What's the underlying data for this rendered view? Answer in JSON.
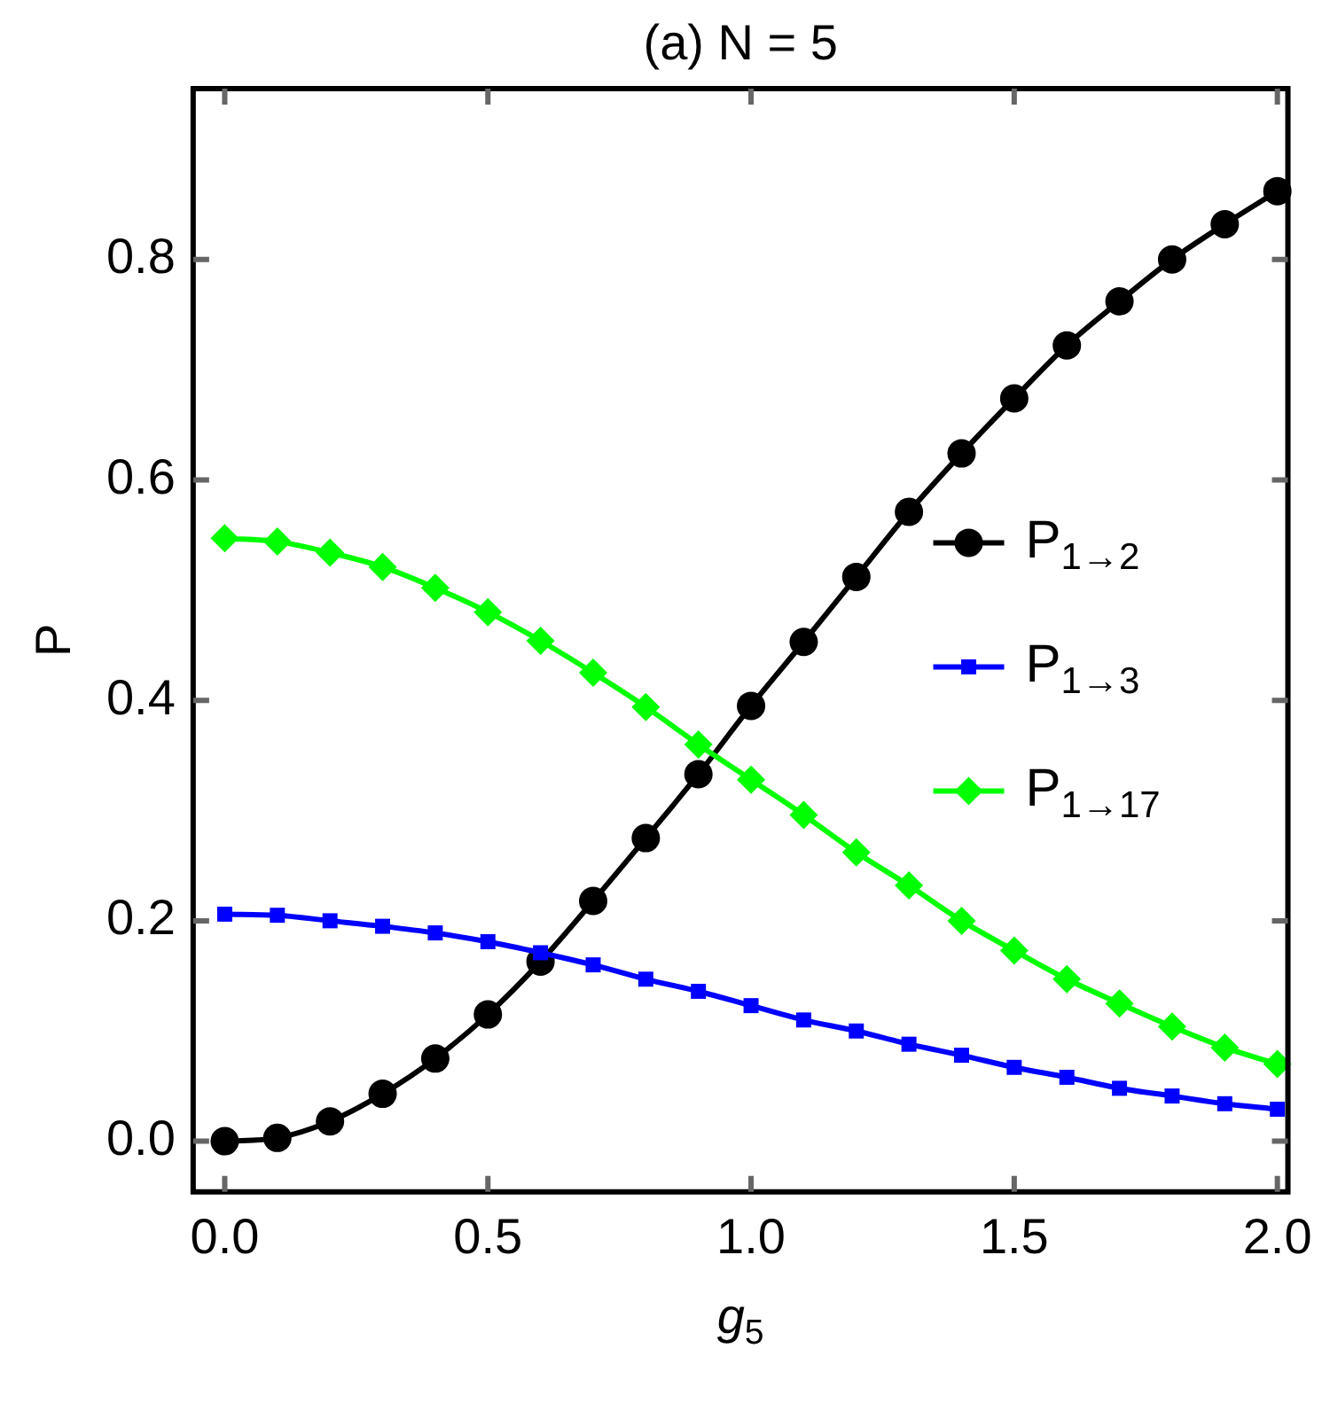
{
  "chart_data": {
    "type": "line",
    "title": "(a) N = 5",
    "xlabel": "g$_{5}$",
    "ylabel": "P",
    "x": [
      0,
      0.1,
      0.2,
      0.3,
      0.4,
      0.5,
      0.6,
      0.7,
      0.8,
      0.9,
      1.0,
      1.1,
      1.2,
      1.3,
      1.4,
      1.5,
      1.6,
      1.7,
      1.8,
      1.9,
      2.0
    ],
    "series": [
      {
        "name": "P$_{1→2}$",
        "color": "#000000",
        "marker": "circle",
        "values": [
          0,
          0.003,
          0.018,
          0.043,
          0.075,
          0.115,
          0.163,
          0.218,
          0.275,
          0.333,
          0.395,
          0.453,
          0.512,
          0.571,
          0.624,
          0.674,
          0.722,
          0.762,
          0.8,
          0.832,
          0.862
        ]
      },
      {
        "name": "P$_{1→3}$",
        "color": "#0000ff",
        "marker": "square",
        "values": [
          0.206,
          0.205,
          0.2,
          0.195,
          0.189,
          0.181,
          0.171,
          0.16,
          0.147,
          0.136,
          0.123,
          0.11,
          0.1,
          0.088,
          0.078,
          0.067,
          0.058,
          0.048,
          0.041,
          0.034,
          0.029
        ]
      },
      {
        "name": "P$_{1→17}$",
        "color": "#00ff00",
        "marker": "diamond",
        "values": [
          0.547,
          0.544,
          0.534,
          0.521,
          0.502,
          0.48,
          0.454,
          0.425,
          0.394,
          0.36,
          0.328,
          0.296,
          0.262,
          0.232,
          0.2,
          0.173,
          0.147,
          0.125,
          0.104,
          0.085,
          0.07
        ]
      }
    ],
    "xlim": [
      -0.06,
      2.02
    ],
    "ylim": [
      -0.046,
      0.955
    ],
    "xticks": [
      {
        "value": 0,
        "label": "0.0"
      },
      {
        "value": 0.5,
        "label": "0.5"
      },
      {
        "value": 1,
        "label": "1.0"
      },
      {
        "value": 1.5,
        "label": "1.5"
      },
      {
        "value": 2,
        "label": "2.0"
      }
    ],
    "yticks": [
      {
        "value": 0,
        "label": "0.0"
      },
      {
        "value": 0.2,
        "label": "0.2"
      },
      {
        "value": 0.4,
        "label": "0.4"
      },
      {
        "value": 0.6,
        "label": "0.6"
      },
      {
        "value": 0.8,
        "label": "0.8"
      }
    ],
    "grid": false,
    "legend": "right",
    "line_style": "solid"
  }
}
